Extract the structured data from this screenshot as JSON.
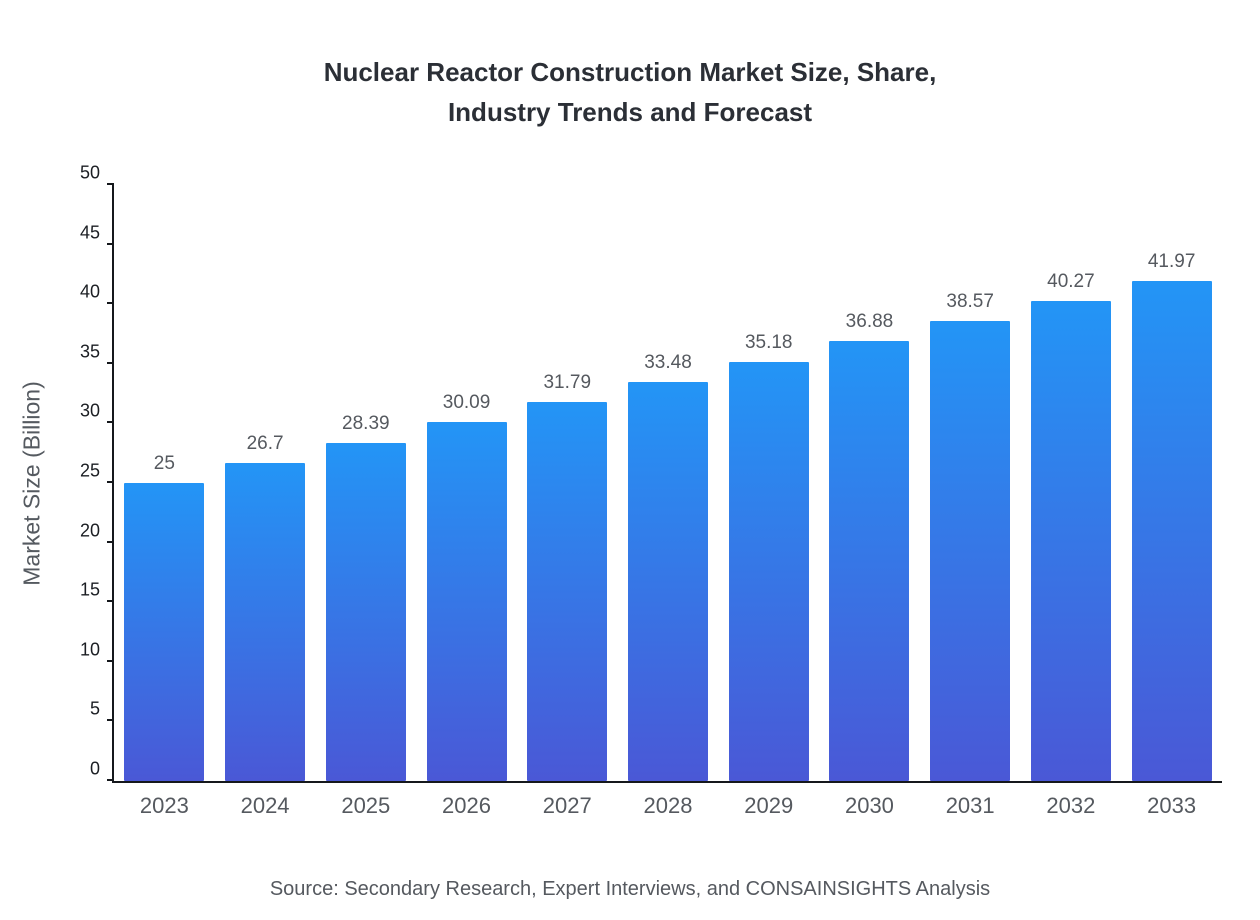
{
  "title": {
    "line1": "Nuclear Reactor Construction Market Size, Share,",
    "line2": "Industry Trends and Forecast"
  },
  "source": "Source: Secondary Research, Expert Interviews, and CONSAINSIGHTS Analysis",
  "colors": {
    "bar_gradient_top": "#2395f6",
    "bar_gradient_bottom": "#4a58d6",
    "axis": "#15181c",
    "tick_text": "#1b1e23",
    "muted_text": "#55595f"
  },
  "chart_data": {
    "type": "bar",
    "title": "Nuclear Reactor Construction Market Size, Share, Industry Trends and Forecast",
    "categories": [
      "2023",
      "2024",
      "2025",
      "2026",
      "2027",
      "2028",
      "2029",
      "2030",
      "2031",
      "2032",
      "2033"
    ],
    "values": [
      25,
      26.7,
      28.39,
      30.09,
      31.79,
      33.48,
      35.18,
      36.88,
      38.57,
      40.27,
      41.97
    ],
    "data_labels": [
      "25",
      "26.7",
      "28.39",
      "30.09",
      "31.79",
      "33.48",
      "35.18",
      "36.88",
      "38.57",
      "40.27",
      "41.97"
    ],
    "xlabel": "",
    "ylabel": "Market Size (Billion)",
    "ylim": [
      0,
      50
    ],
    "ytick_step": 5,
    "grid": false,
    "legend": false
  }
}
